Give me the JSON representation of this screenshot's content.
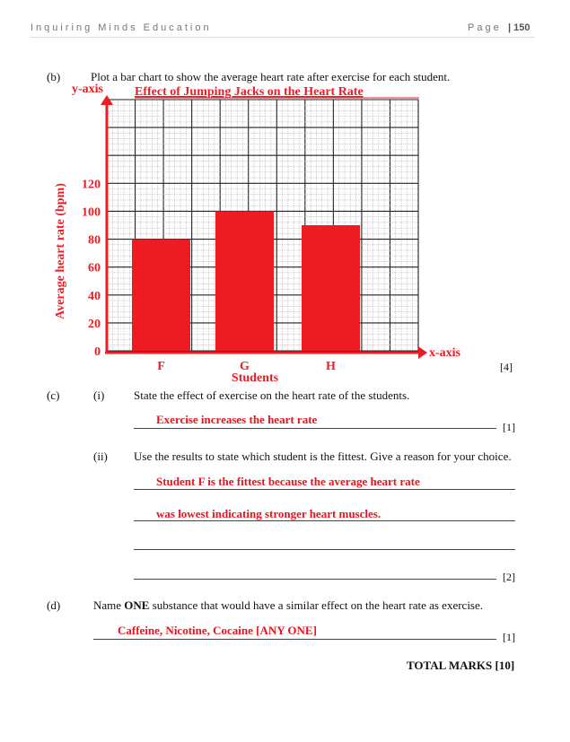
{
  "header": {
    "org": "Inquiring Minds Education",
    "page_label": "Page",
    "page_number": "| 150"
  },
  "part_b": {
    "label": "(b)",
    "question": "Plot a bar chart to show the average heart rate after exercise for each student.",
    "marks": "[4]"
  },
  "chart_data": {
    "type": "bar",
    "title": "Effect of Jumping Jacks on the Heart Rate",
    "xlabel": "Students",
    "ylabel": "Average heart rate (bpm)",
    "x_axis_tag": "x-axis",
    "y_axis_tag": "y-axis",
    "categories": [
      "F",
      "G",
      "H"
    ],
    "values": [
      80,
      100,
      90
    ],
    "yticks": [
      0,
      20,
      40,
      60,
      80,
      100,
      120
    ],
    "ylim": [
      0,
      180
    ],
    "grid": true,
    "bar_color": "#ed1c24"
  },
  "part_c": {
    "label": "(c)",
    "i": {
      "label": "(i)",
      "question": "State the effect of exercise on the heart rate of the students.",
      "answer": "Exercise increases the heart rate",
      "marks": "[1]"
    },
    "ii": {
      "label": "(ii)",
      "question": "Use the results to state which student is the fittest. Give a reason for your choice.",
      "answer_lines": [
        "Student F is the fittest because the average heart rate",
        "was lowest indicating stronger heart muscles."
      ],
      "marks": "[2]"
    }
  },
  "part_d": {
    "label": "(d)",
    "question_pre": "Name ",
    "question_bold": "ONE",
    "question_post": " substance that would have a similar effect on the heart rate as exercise.",
    "answer": "Caffeine, Nicotine, Cocaine [ANY ONE]",
    "marks": "[1]"
  },
  "total": "TOTAL MARKS [10]"
}
